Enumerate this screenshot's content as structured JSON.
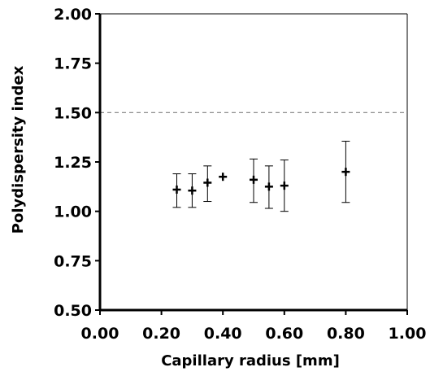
{
  "chart_data": {
    "type": "scatter",
    "title": "",
    "xlabel": "Capillary radius [mm]",
    "ylabel": "Polydispersity index",
    "xlim": [
      0.0,
      1.0
    ],
    "ylim": [
      0.5,
      2.0
    ],
    "x_ticks": [
      "0.00",
      "0.20",
      "0.40",
      "0.60",
      "0.80",
      "1.00"
    ],
    "x_tick_values": [
      0.0,
      0.2,
      0.4,
      0.6,
      0.8,
      1.0
    ],
    "y_ticks": [
      "0.50",
      "0.75",
      "1.00",
      "1.25",
      "1.50",
      "1.75",
      "2.00"
    ],
    "y_tick_values": [
      0.5,
      0.75,
      1.0,
      1.25,
      1.5,
      1.75,
      2.0
    ],
    "grid": false,
    "reference_line": {
      "y": 1.5,
      "style": "dashed",
      "color": "#808080"
    },
    "marker": "plus",
    "color": "#000000",
    "points": [
      {
        "x": 0.25,
        "y": 1.11,
        "err_low": 1.02,
        "err_high": 1.19
      },
      {
        "x": 0.3,
        "y": 1.105,
        "err_low": 1.02,
        "err_high": 1.19
      },
      {
        "x": 0.35,
        "y": 1.145,
        "err_low": 1.05,
        "err_high": 1.23
      },
      {
        "x": 0.4,
        "y": 1.175,
        "err_low": null,
        "err_high": null
      },
      {
        "x": 0.5,
        "y": 1.16,
        "err_low": 1.045,
        "err_high": 1.265
      },
      {
        "x": 0.55,
        "y": 1.125,
        "err_low": 1.015,
        "err_high": 1.23
      },
      {
        "x": 0.6,
        "y": 1.13,
        "err_low": 1.0,
        "err_high": 1.26
      },
      {
        "x": 0.8,
        "y": 1.2,
        "err_low": 1.045,
        "err_high": 1.355
      }
    ]
  }
}
